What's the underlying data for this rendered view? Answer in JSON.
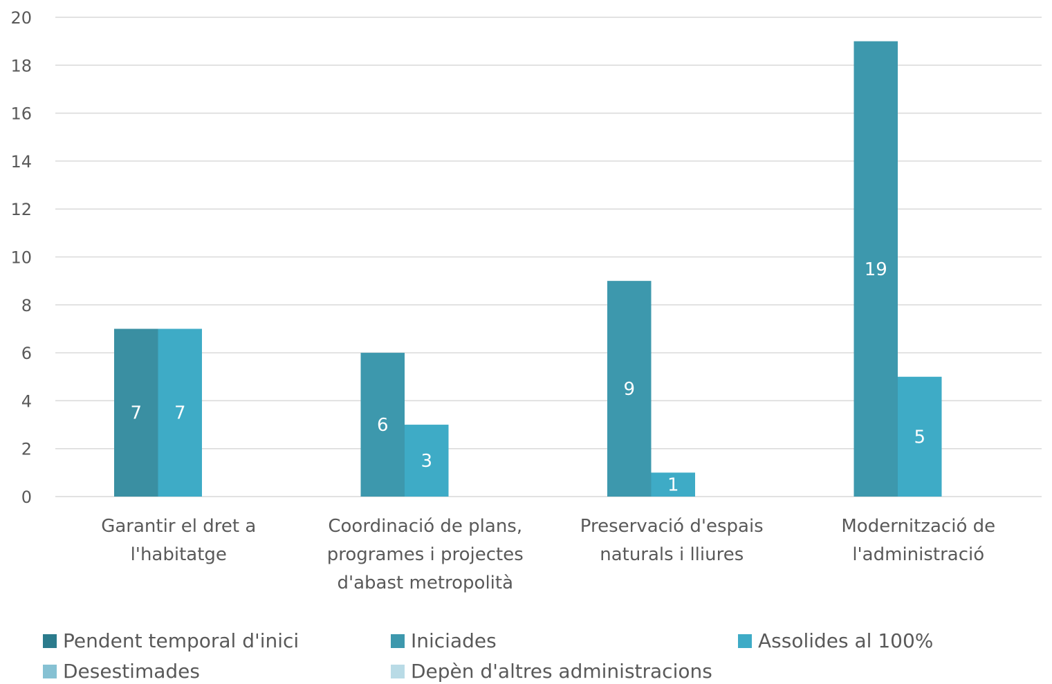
{
  "chart_data": {
    "type": "bar",
    "categories": [
      [
        "Garantir el dret a",
        "l'habitatge"
      ],
      [
        "Coordinació de plans,",
        "programes i projectes",
        "d'abast metropolità"
      ],
      [
        "Preservació d'espais",
        "naturals i lliures"
      ],
      [
        "Modernització de",
        "l'administració"
      ]
    ],
    "series": [
      {
        "name": "Pendent temporal d'inici",
        "color": "#2b7b8c",
        "values": [
          null,
          null,
          null,
          null
        ]
      },
      {
        "name": "Iniciades",
        "color": "#3d98ad",
        "values": [
          7,
          6,
          9,
          19
        ]
      },
      {
        "name": "Assolides al 100%",
        "color": "#3eabc6",
        "values": [
          7,
          3,
          1,
          5
        ]
      },
      {
        "name": "Desestimades",
        "color": "#86c1d3",
        "values": [
          null,
          null,
          null,
          null
        ]
      },
      {
        "name": "Depèn d'altres administracions",
        "color": "#b9dbe6",
        "values": [
          null,
          null,
          null,
          null
        ]
      }
    ],
    "ylim": [
      0,
      20
    ],
    "yticks": [
      0,
      2,
      4,
      6,
      8,
      10,
      12,
      14,
      16,
      18,
      20
    ],
    "grid": true,
    "legend_position": "bottom",
    "first_bar_override_color": "#3a8fa2"
  }
}
